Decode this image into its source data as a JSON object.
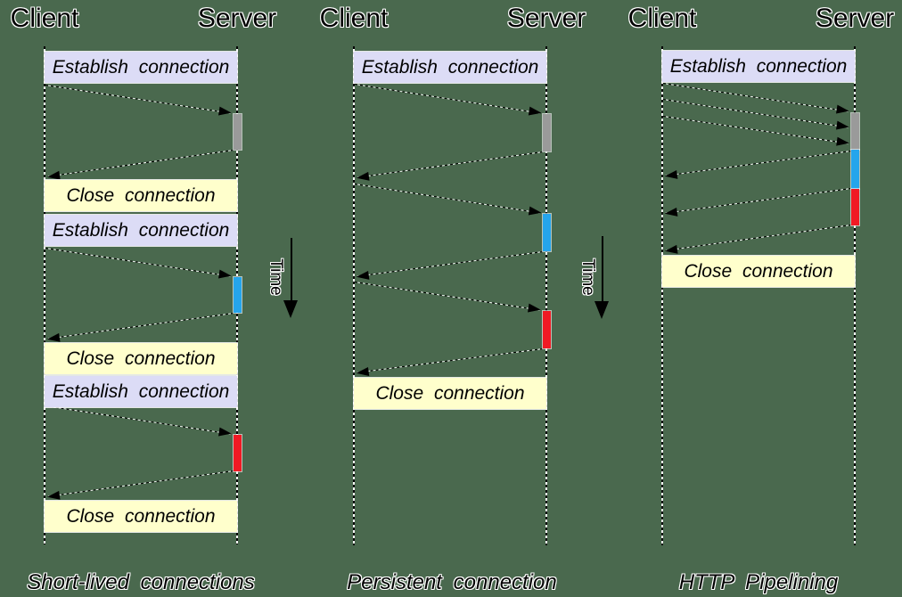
{
  "diagram": {
    "time_label": "Time",
    "columns": [
      {
        "client_label": "Client",
        "server_label": "Server",
        "caption": "Short-lived connections",
        "boxes": [
          "Establish connection",
          "Close connection",
          "Establish connection",
          "Close connection",
          "Establish connection",
          "Close connection"
        ],
        "request_count": 3,
        "response_count": 3
      },
      {
        "client_label": "Client",
        "server_label": "Server",
        "caption": "Persistent connection",
        "boxes": [
          "Establish connection",
          "Close connection"
        ],
        "request_count": 3,
        "response_count": 3
      },
      {
        "client_label": "Client",
        "server_label": "Server",
        "caption": "HTTP Pipelining",
        "boxes": [
          "Establish connection",
          "Close connection"
        ],
        "request_count": 3,
        "response_count": 3
      }
    ],
    "colors": {
      "background": "#4a694e",
      "establish_box": "#dcdcf6",
      "close_box": "#ffffcc",
      "processing_bar_gray": "#9a9a9a",
      "processing_bar_blue": "#25a5ec",
      "processing_bar_red": "#f01a24",
      "line": "#000000"
    }
  }
}
